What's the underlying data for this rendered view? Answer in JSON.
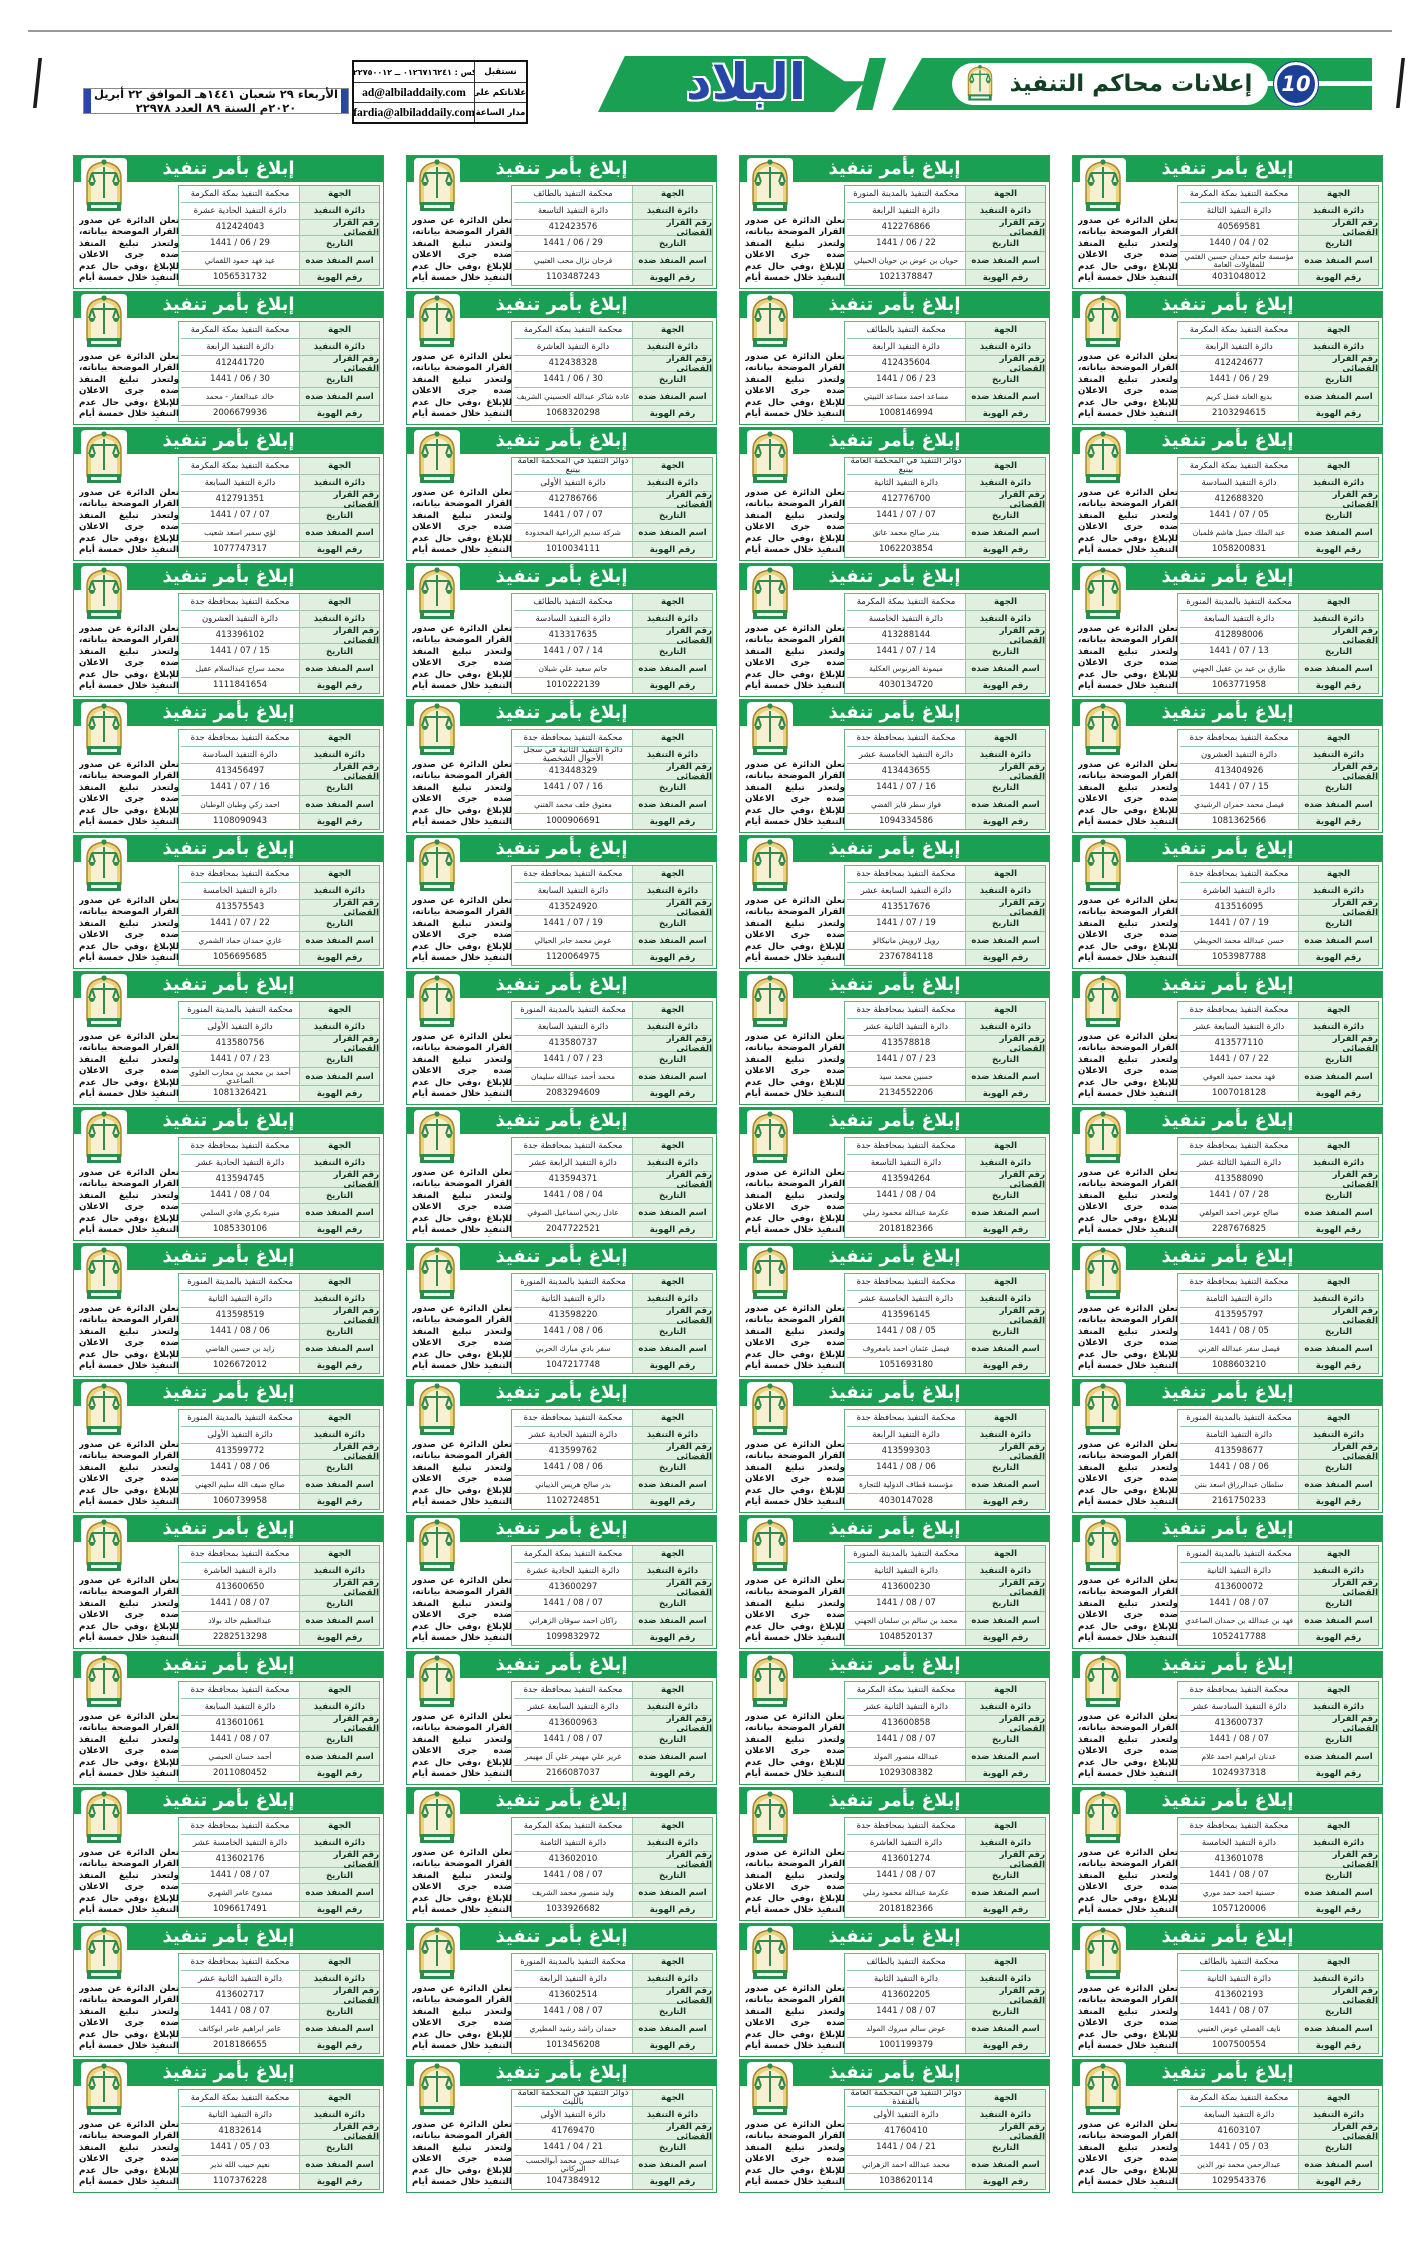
{
  "page": {
    "number": "10",
    "section_title": "إعلانات محاكم التنفيذ"
  },
  "masthead": {
    "logo": "البلاد",
    "date_line": "الأربعاء ٢٩ شعبان ١٤٤١هـ الموافق ٢٢ أبريل ٢٠٢٠م السنة ٨٩ العدد ٢٢٩٧٨",
    "contact": {
      "rows": [
        {
          "label": "نستقبل",
          "value": "(فاكس : ٠١٢٦٧١٦٢٤١ ــ ٠١٢٢٧٥٠٠١٢)"
        },
        {
          "label": "اعلاناتكم على",
          "value": "ad@albiladdaily.com"
        },
        {
          "label": "مدار الساعة",
          "value": "fardia@albiladdaily.com"
        }
      ]
    }
  },
  "card_template": {
    "title": "إبلاغ بأمر تنفيذ",
    "labels": {
      "court": "الجهة",
      "circle": "دائرة التنفيذ",
      "no": "رقم القرار القضائي",
      "date": "التاريخ",
      "name": "اسم المنفذ ضده",
      "id": "رقم الهوية"
    },
    "body_text": "تعلن الدائرة عن صدور القرار الموضحة بياناته، ولتعذر تبليغ المنفذ ضده جرى الاعلان للإبلاغ ،وفي حال عدم التنفيذ خلال خمسة أيام من تاريخ نشره فسيتم اتخاذ الإجراءات النظامية التي نص عليها نظام التنفيذ."
  },
  "cards": [
    {
      "court": "محكمة التنفيذ بمكة المكرمة",
      "circle": "دائرة التنفيذ الحادية عشرة",
      "no": "412424043",
      "date": "29 / 06 / 1441",
      "name": "عيد فهد حمود اللقماني",
      "id": "1056531732"
    },
    {
      "court": "محكمة التنفيذ بالطائف",
      "circle": "دائرة التنفيذ التاسعة",
      "no": "412423576",
      "date": "29 / 06 / 1441",
      "name": "فرحان نزال محب العتيبي",
      "id": "1103487243"
    },
    {
      "court": "محكمة التنفيذ بالمدينة المنورة",
      "circle": "دائرة التنفيذ الرابعة",
      "no": "412276866",
      "date": "22 / 06 / 1441",
      "name": "حويان بن عوض بن حويان الحبيلي",
      "id": "1021378847"
    },
    {
      "court": "محكمة التنفيذ بمكة المكرمة",
      "circle": "دائرة التنفيذ الثالثة",
      "no": "40569581",
      "date": "02 / 04 / 1440",
      "name": "مؤسسة حاتم حمدان حسين القثمي للمقاولات العامة",
      "id": "4031048012"
    },
    {
      "court": "محكمة التنفيذ بمكة المكرمة",
      "circle": "دائرة التنفيذ الرابعة",
      "no": "412441720",
      "date": "30 / 06 / 1441",
      "name": "خالد عبدالغفار - محمد",
      "id": "2006679936"
    },
    {
      "court": "محكمة التنفيذ بمكة المكرمة",
      "circle": "دائرة التنفيذ العاشرة",
      "no": "412438328",
      "date": "30 / 06 / 1441",
      "name": "غادة شاكر عبدالله الحسيني الشريف",
      "id": "1068320298"
    },
    {
      "court": "محكمة التنفيذ بالطائف",
      "circle": "دائرة التنفيذ الرابعة",
      "no": "412435604",
      "date": "23 / 06 / 1441",
      "name": "مساعد احمد مساعد الثبيتي",
      "id": "1008146994"
    },
    {
      "court": "محكمة التنفيذ بمكة المكرمة",
      "circle": "دائرة التنفيذ الرابعة",
      "no": "412424677",
      "date": "29 / 06 / 1441",
      "name": "بديع العابد فضل كريم",
      "id": "2103294615"
    },
    {
      "court": "محكمة التنفيذ بمكة المكرمة",
      "circle": "دائرة التنفيذ السابعة",
      "no": "412791351",
      "date": "07 / 07 / 1441",
      "name": "لؤي سمير اسعد شعيب",
      "id": "1077747317"
    },
    {
      "court": "دوائر التنفيذ في المحكمة العامة بينبع",
      "circle": "دائرة التنفيذ الأولى",
      "no": "412786766",
      "date": "07 / 07 / 1441",
      "name": "شركة سديم الزراعية المحدودة",
      "id": "1010034111"
    },
    {
      "court": "دوائر التنفيذ في المحكمة العامة بينبع",
      "circle": "دائرة التنفيذ الثانية",
      "no": "412776700",
      "date": "07 / 07 / 1441",
      "name": "بندر صالح محمد عاتق",
      "id": "1062203854"
    },
    {
      "court": "محكمة التنفيذ بمكة المكرمة",
      "circle": "دائرة التنفيذ السادسة",
      "no": "412688320",
      "date": "05 / 07 / 1441",
      "name": "عبد الملك جميل هاشم فلمبان",
      "id": "1058200831"
    },
    {
      "court": "محكمة التنفيذ بمحافظة جدة",
      "circle": "دائرة التنفيذ العشرون",
      "no": "413396102",
      "date": "15 / 07 / 1441",
      "name": "محمد سراج عبدالسلام عقيل",
      "id": "1111841654"
    },
    {
      "court": "محكمة التنفيذ بالطائف",
      "circle": "دائرة التنفيذ السادسة",
      "no": "413317635",
      "date": "14 / 07 / 1441",
      "name": "حاتم سعيد علي شيلان",
      "id": "1010222139"
    },
    {
      "court": "محكمة التنفيذ بمكة المكرمة",
      "circle": "دائرة التنفيذ الخامسة",
      "no": "413288144",
      "date": "14 / 07 / 1441",
      "name": "ميمونة الفرنوس العكلية",
      "id": "4030134720"
    },
    {
      "court": "محكمة التنفيذ بالمدينة المنورة",
      "circle": "دائرة التنفيذ السابعة",
      "no": "412898006",
      "date": "13 / 07 / 1441",
      "name": "طارق بن عيد بن عقيل الجهني",
      "id": "1063771958"
    },
    {
      "court": "محكمة التنفيذ بمحافظة جدة",
      "circle": "دائرة التنفيذ السادسة",
      "no": "413456497",
      "date": "16 / 07 / 1441",
      "name": "احمد زكي وطبان الوطبان",
      "id": "1108090943"
    },
    {
      "court": "محكمة التنفيذ بمحافظة جدة",
      "circle": "دائرة التنفيذ الثانية في سجل الأحوال الشخصية",
      "no": "413448329",
      "date": "16 / 07 / 1441",
      "name": "معتوق خلف محمد الفتني",
      "id": "1000906691"
    },
    {
      "court": "محكمة التنفيذ بمحافظة جدة",
      "circle": "دائرة التنفيذ الخامسة عشر",
      "no": "413443655",
      "date": "16 / 07 / 1441",
      "name": "فواز سطر قايز الفضي",
      "id": "1094334586"
    },
    {
      "court": "محكمة التنفيذ بمحافظة جدة",
      "circle": "دائرة التنفيذ العشرون",
      "no": "413404926",
      "date": "15 / 07 / 1441",
      "name": "فيصل محمد حمران الرشيدي",
      "id": "1081362566"
    },
    {
      "court": "محكمة التنفيذ بمحافظة جدة",
      "circle": "دائرة التنفيذ الخامسة",
      "no": "413575543",
      "date": "22 / 07 / 1441",
      "name": "غازي حمدان حماد الشمري",
      "id": "1056695685"
    },
    {
      "court": "محكمة التنفيذ بمحافظة جدة",
      "circle": "دائرة التنفيذ السابعة",
      "no": "413524920",
      "date": "19 / 07 / 1441",
      "name": "عوض محمد جابر الحيالي",
      "id": "1120064975"
    },
    {
      "court": "محكمة التنفيذ بمحافظة جدة",
      "circle": "دائرة التنفيذ السابعة عشر",
      "no": "413517676",
      "date": "19 / 07 / 1441",
      "name": "رويل لارويش مانيكالو",
      "id": "2376784118"
    },
    {
      "court": "محكمة التنفيذ بمحافظة جدة",
      "circle": "دائرة التنفيذ العاشرة",
      "no": "413516095",
      "date": "19 / 07 / 1441",
      "name": "حسن عبدالله محمد الحويطي",
      "id": "1053987788"
    },
    {
      "court": "محكمة التنفيذ بالمدينة المنورة",
      "circle": "دائرة التنفيذ الأولى",
      "no": "413580756",
      "date": "23 / 07 / 1441",
      "name": "أحمد بن محمد بن محارب العلوي الصاعدي",
      "id": "1081326421"
    },
    {
      "court": "محكمة التنفيذ بالمدينة المنورة",
      "circle": "دائرة التنفيذ السابعة",
      "no": "413580737",
      "date": "23 / 07 / 1441",
      "name": "محمد أحمد عبدالله سليمان",
      "id": "2083294609"
    },
    {
      "court": "محكمة التنفيذ بمحافظة جدة",
      "circle": "دائرة التنفيذ الثانية عشر",
      "no": "413578818",
      "date": "23 / 07 / 1441",
      "name": "حسين محمد سيد",
      "id": "2134552206"
    },
    {
      "court": "محكمة التنفيذ بمحافظة جدة",
      "circle": "دائرة التنفيذ السابعة عشر",
      "no": "413577110",
      "date": "22 / 07 / 1441",
      "name": "فهد محمد حميد العوفي",
      "id": "1007018128"
    },
    {
      "court": "محكمة التنفيذ بمحافظة جدة",
      "circle": "دائرة التنفيذ الحادية عشر",
      "no": "413594745",
      "date": "04 / 08 / 1441",
      "name": "منيرة بكري هادي السلمي",
      "id": "1085330106"
    },
    {
      "court": "محكمة التنفيذ بمحافظة جدة",
      "circle": "دائرة التنفيذ الرابعة عشر",
      "no": "413594371",
      "date": "04 / 08 / 1441",
      "name": "عادل ربحي اسماعيل الصوفي",
      "id": "2047722521"
    },
    {
      "court": "محكمة التنفيذ بمحافظة جدة",
      "circle": "دائرة التنفيذ التاسعة",
      "no": "413594264",
      "date": "04 / 08 / 1441",
      "name": "عكرمة عبدالله محمود رملي",
      "id": "2018182366"
    },
    {
      "court": "محكمة التنفيذ بمحافظة جدة",
      "circle": "دائرة التنفيذ الثالثة عشر",
      "no": "413588090",
      "date": "28 / 07 / 1441",
      "name": "صالح عوض احمد العولقي",
      "id": "2287676825"
    },
    {
      "court": "محكمة التنفيذ بالمدينة المنورة",
      "circle": "دائرة التنفيذ الثانية",
      "no": "413598519",
      "date": "06 / 08 / 1441",
      "name": "زايد بن حسين القاضي",
      "id": "1026672012"
    },
    {
      "court": "محكمة التنفيذ بالمدينة المنورة",
      "circle": "دائرة التنفيذ الثانية",
      "no": "413598220",
      "date": "06 / 08 / 1441",
      "name": "سفر بادي مبارك الحربي",
      "id": "1047217748"
    },
    {
      "court": "محكمة التنفيذ بمحافظة جدة",
      "circle": "دائرة التنفيذ الخامسة عشر",
      "no": "413596145",
      "date": "05 / 08 / 1441",
      "name": "فيصل عثمان احمد بامعروف",
      "id": "1051693180"
    },
    {
      "court": "محكمة التنفيذ بمحافظة جدة",
      "circle": "دائرة التنفيذ الثامنة",
      "no": "413595797",
      "date": "05 / 08 / 1441",
      "name": "فيصل سفر عبدالله القرني",
      "id": "1088603210"
    },
    {
      "court": "محكمة التنفيذ بالمدينة المنورة",
      "circle": "دائرة التنفيذ الأولى",
      "no": "413599772",
      "date": "06 / 08 / 1441",
      "name": "صالح ضيف الله سليم الجهني",
      "id": "1060739958"
    },
    {
      "court": "محكمة التنفيذ بمحافظة جدة",
      "circle": "دائرة التنفيذ الحادية عشر",
      "no": "413599762",
      "date": "06 / 08 / 1441",
      "name": "بدر صالح هريس الذيباني",
      "id": "1102724851"
    },
    {
      "court": "محكمة التنفيذ بمحافظة جدة",
      "circle": "دائرة التنفيذ الرابعة",
      "no": "413599303",
      "date": "06 / 08 / 1441",
      "name": "مؤسسة قطاف الدولية للتجارة",
      "id": "4030147028"
    },
    {
      "court": "محكمة التنفيذ بالمدينة المنورة",
      "circle": "دائرة التنفيذ الثامنة",
      "no": "413598677",
      "date": "06 / 08 / 1441",
      "name": "سلطان عبدالرزاق اسعد بنتن",
      "id": "2161750233"
    },
    {
      "court": "محكمة التنفيذ بمحافظة جدة",
      "circle": "دائرة التنفيذ العاشرة",
      "no": "413600650",
      "date": "07 / 08 / 1441",
      "name": "عبدالعظيم خالد بولاد",
      "id": "2282513298"
    },
    {
      "court": "محكمة التنفيذ بمكة المكرمة",
      "circle": "دائرة التنفيذ الحادية عشرة",
      "no": "413600297",
      "date": "07 / 08 / 1441",
      "name": "راكان احمد سوقان الزهراني",
      "id": "1099832972"
    },
    {
      "court": "محكمة التنفيذ بالمدينة المنورة",
      "circle": "دائرة التنفيذ الثانية",
      "no": "413600230",
      "date": "07 / 08 / 1441",
      "name": "محمد بن سالم بن سلمان الجهني",
      "id": "1048520137"
    },
    {
      "court": "محكمة التنفيذ بالمدينة المنورة",
      "circle": "دائرة التنفيذ الثانية",
      "no": "413600072",
      "date": "07 / 08 / 1441",
      "name": "فهد بن عبدالله بن حمدان الصاعدي",
      "id": "1052417788"
    },
    {
      "court": "محكمة التنفيذ بمحافظة جدة",
      "circle": "دائرة التنفيذ السابعة",
      "no": "413601061",
      "date": "07 / 08 / 1441",
      "name": "أحمد حسان الحيصي",
      "id": "2011080452"
    },
    {
      "court": "محكمة التنفيذ بمحافظة جدة",
      "circle": "دائرة التنفيذ السابعة عشر",
      "no": "413600963",
      "date": "07 / 08 / 1441",
      "name": "غرير علي مهيمر علي آل مهيمر",
      "id": "2166087037"
    },
    {
      "court": "محكمة التنفيذ بمكة المكرمة",
      "circle": "دائرة التنفيذ الثانية عشر",
      "no": "413600858",
      "date": "07 / 08 / 1441",
      "name": "عبدالله منصور المولد",
      "id": "1029308382"
    },
    {
      "court": "محكمة التنفيذ بمحافظة جدة",
      "circle": "دائرة التنفيذ السادسة عشر",
      "no": "413600737",
      "date": "07 / 08 / 1441",
      "name": "عدنان ابراهيم احمد غلام",
      "id": "1024937318"
    },
    {
      "court": "محكمة التنفيذ بمحافظة جدة",
      "circle": "دائرة التنفيذ الخامسة عشر",
      "no": "413602176",
      "date": "07 / 08 / 1441",
      "name": "ممدوح عامر الشهري",
      "id": "1096617491"
    },
    {
      "court": "محكمة التنفيذ بمكة المكرمة",
      "circle": "دائرة التنفيذ الثامنة",
      "no": "413602010",
      "date": "07 / 08 / 1441",
      "name": "وليد منصور محمد الشريف",
      "id": "1033926682"
    },
    {
      "court": "محكمة التنفيذ بمحافظة جدة",
      "circle": "دائرة التنفيذ العاشرة",
      "no": "413601274",
      "date": "07 / 08 / 1441",
      "name": "عكرمة عبدالله محمود رملي",
      "id": "2018182366"
    },
    {
      "court": "محكمة التنفيذ بمحافظة جدة",
      "circle": "دائرة التنفيذ الخامسة",
      "no": "413601078",
      "date": "07 / 08 / 1441",
      "name": "حسنية احمد حمد موري",
      "id": "1057120006"
    },
    {
      "court": "محكمة التنفيذ بمحافظة جدة",
      "circle": "دائرة التنفيذ الثانية عشر",
      "no": "413602717",
      "date": "07 / 08 / 1441",
      "name": "عامر ابراهيم عامر ابوكاتف",
      "id": "2018186655"
    },
    {
      "court": "محكمة التنفيذ بالمدينة المنورة",
      "circle": "دائرة التنفيذ الرابعة",
      "no": "413602514",
      "date": "07 / 08 / 1441",
      "name": "حمدان راشد رشيد المطيري",
      "id": "1013456208"
    },
    {
      "court": "محكمة التنفيذ بالطائف",
      "circle": "دائرة التنفيذ الثانية",
      "no": "413602205",
      "date": "07 / 08 / 1441",
      "name": "عوض سالم مبروك المولد",
      "id": "1001199379"
    },
    {
      "court": "محكمة التنفيذ بالطائف",
      "circle": "دائرة التنفيذ الثانية",
      "no": "413602193",
      "date": "07 / 08 / 1441",
      "name": "نايف الفصلي عوض العتيبي",
      "id": "1007500554"
    },
    {
      "court": "محكمة التنفيذ بمكة المكرمة",
      "circle": "دائرة التنفيذ الثانية",
      "no": "41832614",
      "date": "03 / 05 / 1441",
      "name": "نعيم حبيب الله نذير",
      "id": "1107376228"
    },
    {
      "court": "دوائر التنفيذ في المحكمة العامة بالليث",
      "circle": "دائرة التنفيذ الأولى",
      "no": "41769470",
      "date": "21 / 04 / 1441",
      "name": "عبدالله حسن محمد أبوالحسب البركاني",
      "id": "1047384912"
    },
    {
      "court": "دوائر التنفيذ في المحكمة العامة بالقنفذة",
      "circle": "دائرة التنفيذ الأولى",
      "no": "41760410",
      "date": "21 / 04 / 1441",
      "name": "محمد عبدالله احمد الزهراني",
      "id": "1038620114"
    },
    {
      "court": "محكمة التنفيذ بمكة المكرمة",
      "circle": "دائرة التنفيذ السابعة",
      "no": "41603107",
      "date": "03 / 05 / 1441",
      "name": "عبدالرحمن محمد نور الدين",
      "id": "1029543376"
    }
  ]
}
